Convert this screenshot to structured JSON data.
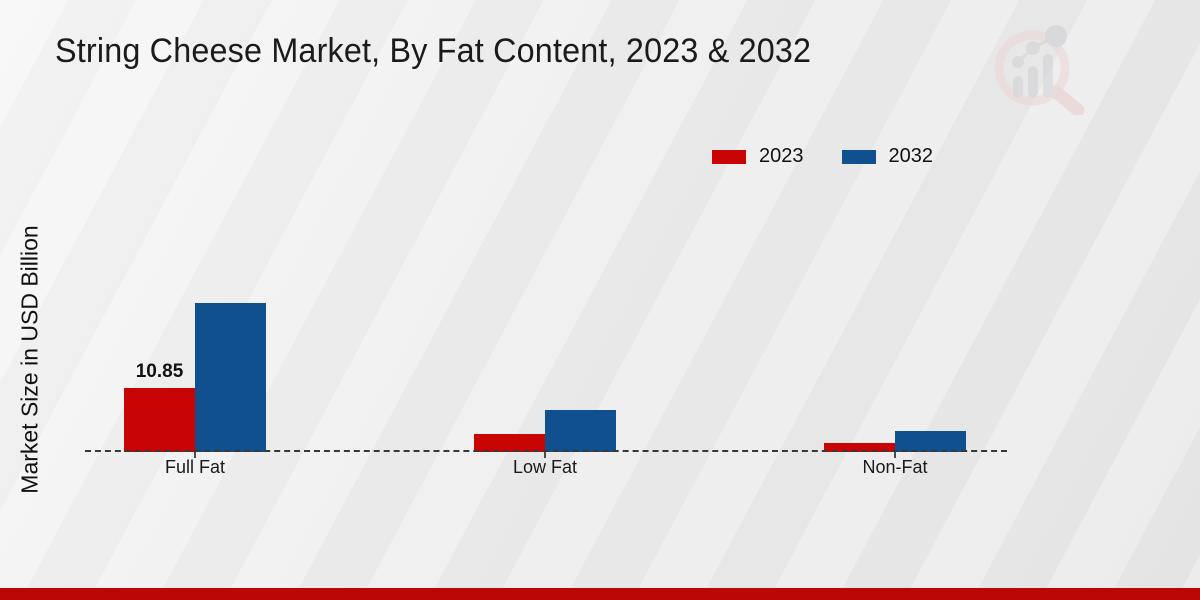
{
  "chart_data": {
    "type": "bar",
    "title": "String Cheese Market, By Fat Content, 2023 & 2032",
    "ylabel": "Market Size in USD Billion",
    "xlabel": "",
    "categories": [
      "Full Fat",
      "Low Fat",
      "Non-Fat"
    ],
    "series": [
      {
        "name": "2023",
        "color": "#c80404",
        "values": [
          10.85,
          3.0,
          1.6
        ],
        "data_labels": [
          "10.85",
          null,
          null
        ]
      },
      {
        "name": "2032",
        "color": "#10508f",
        "values": [
          25.3,
          7.1,
          3.6
        ],
        "data_labels": [
          null,
          null,
          null
        ]
      }
    ],
    "ylim": [
      0,
      27
    ],
    "grid": false,
    "legend_position": "top-right",
    "baseline_style": "dashed",
    "y_axis_ticks_visible": false
  },
  "branding": {
    "logo_name": "market-research-future-watermark",
    "footer_accent_color": "#bb0606"
  }
}
